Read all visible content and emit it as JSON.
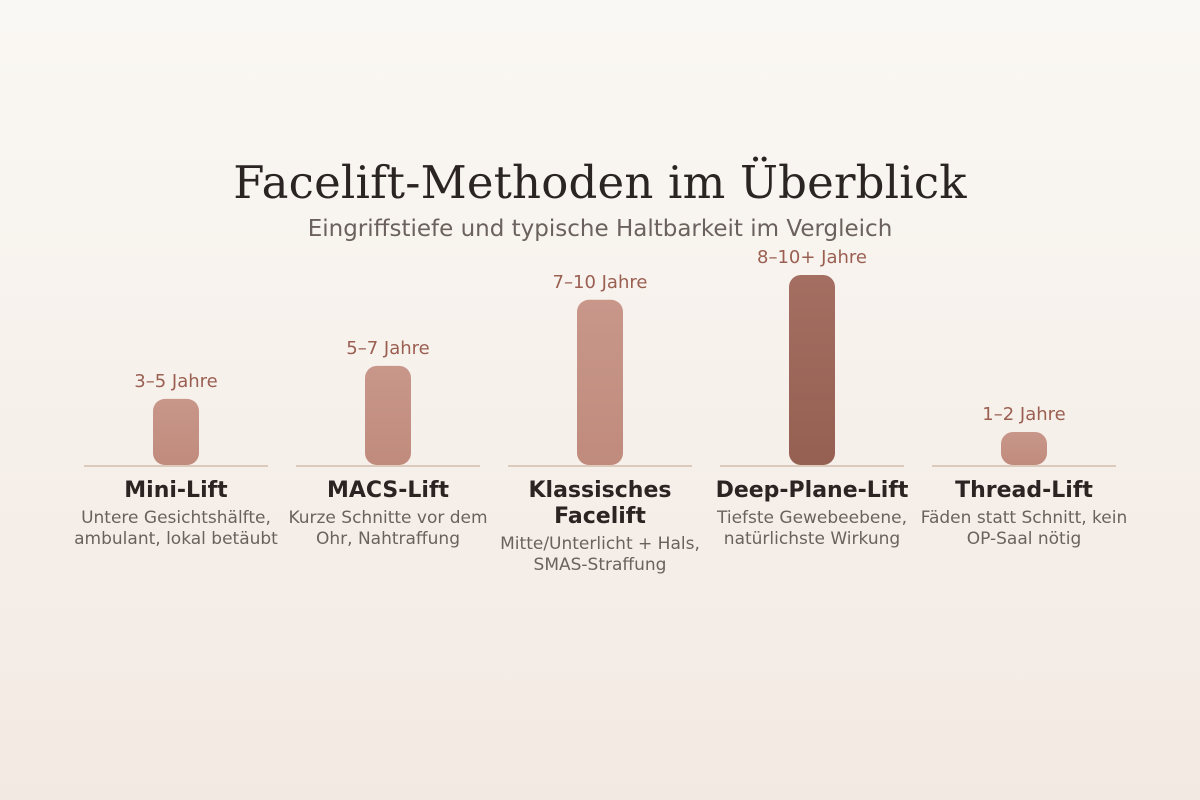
{
  "chart_data": {
    "type": "bar",
    "title": "Facelift-Methoden im Überblick",
    "subtitle": "Eingriffstiefe und typische Haltbarkeit im Vergleich",
    "xlabel": "",
    "ylabel": "",
    "categories": [
      "Mini-Lift",
      "MACS-Lift",
      "Klassisches Facelift",
      "Deep-Plane-Lift",
      "Thread-Lift"
    ],
    "descriptions": [
      "Untere Gesichtshälfte, ambulant, lokal betäubt",
      "Kurze Schnitte vor dem Ohr, Nahtraffung",
      "Mitte/Unterlicht + Hals, SMAS-Straffung",
      "Tiefste Gewebeebene, natürlichste Wirkung",
      "Fäden statt Schnitt, kein OP-Saal nötig"
    ],
    "value_labels": [
      "3–5 Jahre",
      "5–7 Jahre",
      "7–10 Jahre",
      "8–10+ Jahre",
      "1–2 Jahre"
    ],
    "values": [
      4,
      6,
      10,
      11.5,
      2
    ],
    "ylim": [
      0,
      11.5
    ],
    "grid": false,
    "legend": "none",
    "colors": {
      "bar": "#c49082",
      "highlight": "#9c6659",
      "baseline": "#dccbbd",
      "value_text": "#9b5f52"
    },
    "highlight_index": 3
  }
}
